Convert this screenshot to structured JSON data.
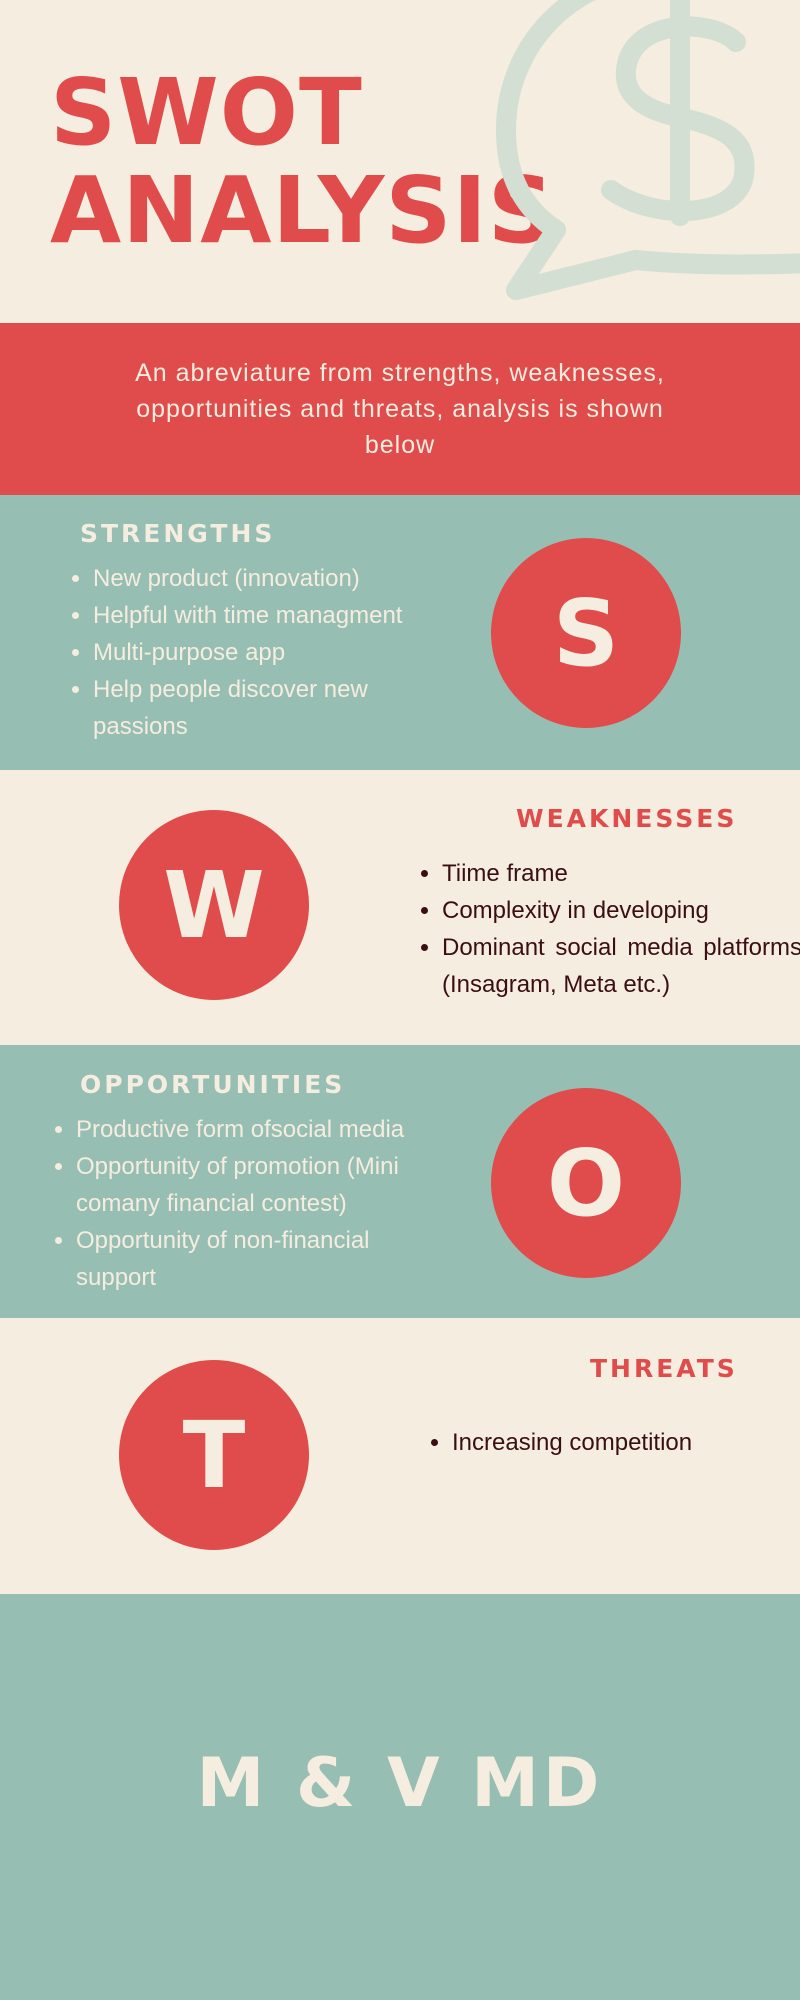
{
  "header": {
    "title_line1": "SWOT",
    "title_line2": "ANALYSIS"
  },
  "intro": {
    "text": "An abreviature from strengths, weaknesses, opportunities and threats, analysis is shown below"
  },
  "strengths": {
    "heading": "STRENGTHS",
    "letter": "S",
    "items": [
      "New product (innovation)",
      "Helpful with time managment",
      "Multi-purpose app",
      "Help people discover new passions"
    ]
  },
  "weaknesses": {
    "heading": "WEAKNESSES",
    "letter": "W",
    "items": [
      "Tiime frame",
      "Complexity in developing",
      "Dominant social media platforms (Insagram, Meta etc.)"
    ]
  },
  "opportunities": {
    "heading": "OPPORTUNITIES",
    "letter": "O",
    "items": [
      "Productive form ofsocial media",
      "Opportunity of promotion (Mini comany financial contest)",
      "Opportunity of non-financial support"
    ]
  },
  "threats": {
    "heading": "THREATS",
    "letter": "T",
    "items": [
      "Increasing competition"
    ]
  },
  "footer": {
    "text": "M & V MD"
  },
  "icons": {
    "decoration": "dollar-speech-bubble-icon"
  },
  "colors": {
    "red": "#e04b4b",
    "teal": "#97beb3",
    "cream": "#f5eddf",
    "dark_text": "#3a0f14",
    "icon_tint": "#d2dfd2"
  }
}
